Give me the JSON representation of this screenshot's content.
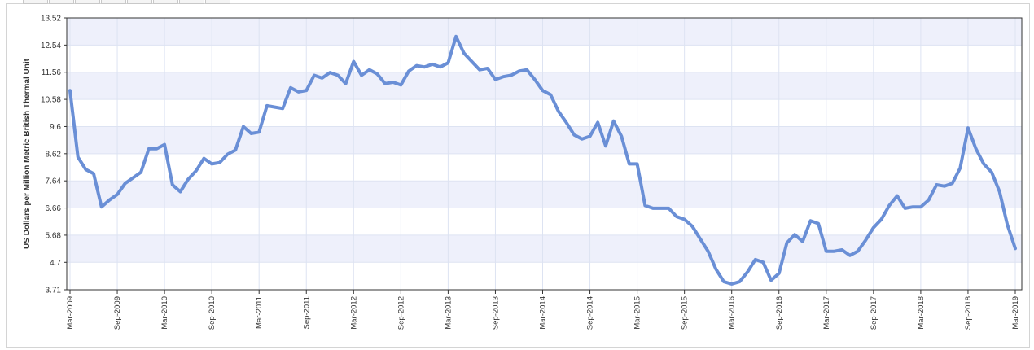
{
  "chart_data": {
    "type": "line",
    "title": "",
    "xlabel": "",
    "ylabel": "US Dollars per Million Metric British Thermal Unit",
    "ylim": [
      3.71,
      13.52
    ],
    "y_ticks": [
      "3.71",
      "4.7",
      "5.68",
      "6.66",
      "7.64",
      "8.62",
      "9.6",
      "10.58",
      "11.56",
      "12.54",
      "13.52"
    ],
    "x_ticks": [
      "Mar-2009",
      "Sep-2009",
      "Mar-2010",
      "Sep-2010",
      "Mar-2011",
      "Sep-2011",
      "Mar-2012",
      "Sep-2012",
      "Mar-2013",
      "Sep-2013",
      "Mar-2014",
      "Sep-2014",
      "Mar-2015",
      "Sep-2015",
      "Mar-2016",
      "Sep-2016",
      "Mar-2017",
      "Sep-2017",
      "Mar-2018",
      "Sep-2018",
      "Mar-2019"
    ],
    "x_start": "Mar-2009",
    "x_end": "Mar-2019",
    "grid": true,
    "line_color": "#6a8fd6",
    "band_color": "#eef0fb",
    "series": [
      {
        "values": [
          10.9,
          8.5,
          8.05,
          7.9,
          6.7,
          6.95,
          7.15,
          7.55,
          7.75,
          7.95,
          8.8,
          8.8,
          8.95,
          7.5,
          7.25,
          7.7,
          8.0,
          8.45,
          8.25,
          8.3,
          8.6,
          8.75,
          9.6,
          9.35,
          9.4,
          10.35,
          10.3,
          10.25,
          11.0,
          10.85,
          10.9,
          11.45,
          11.35,
          11.55,
          11.45,
          11.15,
          11.95,
          11.45,
          11.65,
          11.5,
          11.15,
          11.2,
          11.1,
          11.6,
          11.8,
          11.75,
          11.85,
          11.75,
          11.9,
          12.85,
          12.25,
          11.95,
          11.65,
          11.7,
          11.3,
          11.4,
          11.45,
          11.6,
          11.65,
          11.3,
          10.9,
          10.75,
          10.15,
          9.75,
          9.3,
          9.15,
          9.25,
          9.75,
          8.9,
          9.8,
          9.25,
          8.25,
          8.25,
          6.75,
          6.65,
          6.65,
          6.65,
          6.35,
          6.25,
          6.0,
          5.55,
          5.1,
          4.45,
          4.0,
          3.92,
          4.0,
          4.35,
          4.8,
          4.7,
          4.05,
          4.3,
          5.4,
          5.7,
          5.45,
          6.2,
          6.1,
          5.1,
          5.1,
          5.15,
          4.95,
          5.1,
          5.5,
          5.95,
          6.25,
          6.75,
          7.1,
          6.65,
          6.7,
          6.7,
          6.95,
          7.5,
          7.45,
          7.55,
          8.1,
          9.55,
          8.8,
          8.25,
          7.95,
          7.25,
          6.05,
          5.2
        ]
      }
    ]
  }
}
